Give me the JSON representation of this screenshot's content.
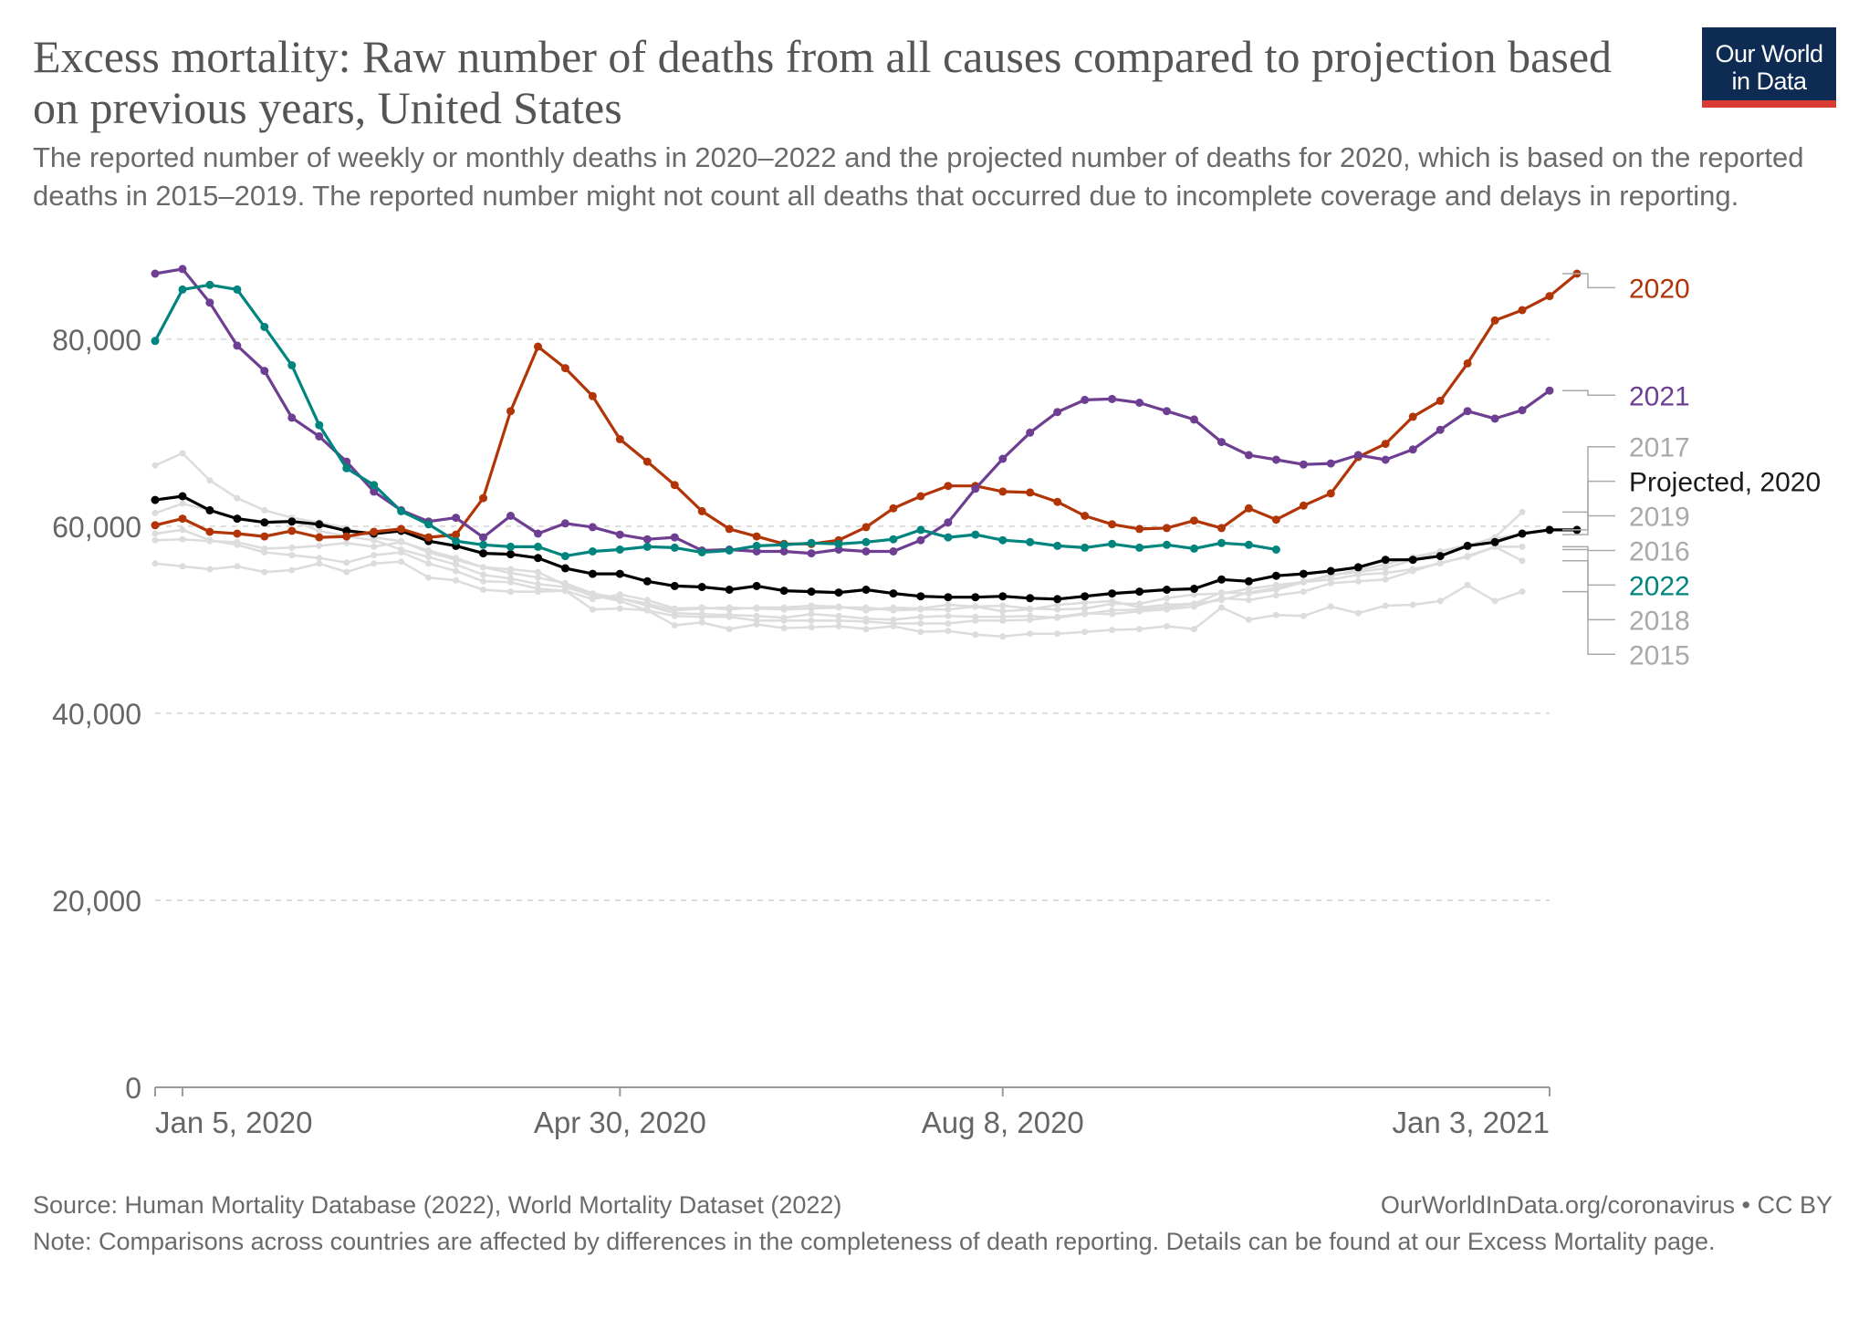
{
  "header": {
    "title": "Excess mortality: Raw number of deaths from all causes compared to projection based on previous years, United States",
    "subtitle": "The reported number of weekly or monthly deaths in 2020–2022 and the projected number of deaths for 2020, which is based on the reported deaths in 2015–2019. The reported number might not count all deaths that occurred due to incomplete coverage and delays in reporting.",
    "logo_line1": "Our World",
    "logo_line2": "in Data"
  },
  "footer": {
    "source": "Source: Human Mortality Database (2022), World Mortality Dataset (2022)",
    "url": "OurWorldInData.org/coronavirus • CC BY",
    "note": "Note: Comparisons across countries are affected by differences in the completeness of death reporting. Details can be found at our Excess Mortality page."
  },
  "chart_data": {
    "type": "line",
    "title": "Excess mortality: Raw number of deaths from all causes compared to projection based on previous years, United States",
    "xlabel": "",
    "ylabel": "",
    "ylim": [
      0,
      87000
    ],
    "yticks": [
      0,
      20000,
      40000,
      60000,
      80000
    ],
    "ytick_labels": [
      "0",
      "20,000",
      "40,000",
      "60,000",
      "80,000"
    ],
    "xlim": [
      0,
      51
    ],
    "xticks": [
      1,
      17,
      31,
      51
    ],
    "xtick_labels": [
      "Jan 5, 2020",
      "Apr 30, 2020",
      "Aug 8, 2020",
      "Jan 3, 2021"
    ],
    "grid": true,
    "legend": "right-labels",
    "series": [
      {
        "name": "2015",
        "role": "background",
        "color": "#dcdcdc",
        "values": [
          56000,
          55700,
          55400,
          55700,
          55100,
          55300,
          56000,
          55100,
          56000,
          56200,
          54500,
          54200,
          53200,
          53000,
          53000,
          53100,
          51100,
          51200,
          51000,
          49400,
          49700,
          49000,
          49500,
          49100,
          49200,
          49300,
          49000,
          49300,
          48700,
          48800,
          48400,
          48200,
          48500,
          48500,
          48700,
          48900,
          49000,
          49300,
          49000,
          51300,
          50000,
          50500,
          50400,
          51400,
          50700,
          51500,
          51600,
          52000,
          53700,
          52000,
          53000
        ]
      },
      {
        "name": "2016",
        "role": "background",
        "color": "#dcdcdc",
        "values": [
          58500,
          58600,
          58400,
          58300,
          57600,
          57700,
          57900,
          58200,
          57800,
          58300,
          57400,
          56600,
          55600,
          55400,
          55100,
          53700,
          52500,
          52300,
          51700,
          51000,
          51200,
          51300,
          51200,
          51100,
          51200,
          51300,
          51300,
          51000,
          51100,
          51100,
          51400,
          50900,
          51100,
          51600,
          51800,
          52000,
          51300,
          51600,
          51700,
          52900,
          52800,
          53200,
          54000,
          54300,
          54800,
          55000,
          55400,
          56000,
          56800,
          57800,
          57800
        ]
      },
      {
        "name": "2017",
        "role": "background",
        "color": "#dcdcdc",
        "values": [
          66500,
          67800,
          64900,
          63000,
          61700,
          60900,
          60400,
          59800,
          58800,
          58400,
          57200,
          56400,
          55600,
          55000,
          54500,
          53900,
          52800,
          52300,
          51500,
          50700,
          50600,
          50500,
          50400,
          50200,
          50600,
          50400,
          50100,
          50000,
          50300,
          50400,
          50300,
          50300,
          50400,
          50200,
          50600,
          51000,
          51100,
          51300,
          51700,
          52100,
          52900,
          53400,
          54100,
          54700,
          55300,
          55900,
          56700,
          57300,
          58000,
          58700,
          59100
        ]
      },
      {
        "name": "2018",
        "role": "background",
        "color": "#dcdcdc",
        "values": [
          61400,
          62400,
          61700,
          60800,
          60500,
          60600,
          59500,
          58900,
          58500,
          57500,
          56700,
          55900,
          54800,
          54400,
          53800,
          53500,
          52600,
          52000,
          51000,
          50400,
          50300,
          50300,
          49900,
          49900,
          49900,
          49900,
          49800,
          49600,
          49600,
          49600,
          49900,
          49900,
          50000,
          50300,
          50700,
          50600,
          50900,
          51100,
          51400,
          52300,
          52100,
          52600,
          53000,
          53900,
          54100,
          54300,
          55200,
          56100,
          56700,
          57800,
          56300
        ]
      },
      {
        "name": "2019",
        "role": "background",
        "color": "#dcdcdc",
        "values": [
          59200,
          59600,
          58500,
          58000,
          57200,
          56900,
          56600,
          56100,
          56900,
          57200,
          56000,
          55200,
          54100,
          54000,
          53300,
          53100,
          52200,
          52700,
          52100,
          51200,
          51300,
          51100,
          51300,
          51300,
          51500,
          51400,
          51000,
          51300,
          51200,
          51600,
          51400,
          51500,
          51200,
          51100,
          51200,
          51700,
          51700,
          52300,
          52700,
          52800,
          53300,
          53700,
          54000,
          54800,
          55100,
          55500,
          56400,
          57300,
          57900,
          58800,
          61500
        ]
      },
      {
        "name": "Projected, 2020",
        "role": "projected",
        "color": "#000000",
        "values": [
          62800,
          63200,
          61700,
          60800,
          60400,
          60500,
          60200,
          59500,
          59200,
          59500,
          58400,
          57900,
          57100,
          57000,
          56600,
          55500,
          54900,
          54900,
          54100,
          53600,
          53500,
          53200,
          53600,
          53100,
          53000,
          52900,
          53200,
          52800,
          52500,
          52400,
          52400,
          52500,
          52300,
          52200,
          52500,
          52800,
          53000,
          53200,
          53300,
          54300,
          54100,
          54700,
          54900,
          55200,
          55600,
          56400,
          56400,
          56800,
          57900,
          58300,
          59200,
          59600,
          59600
        ]
      },
      {
        "name": "2020",
        "role": "main",
        "color": "#b13507",
        "values": [
          60100,
          60800,
          59400,
          59200,
          58900,
          59500,
          58800,
          58900,
          59400,
          59700,
          58800,
          59100,
          63000,
          72300,
          79200,
          76900,
          73900,
          69300,
          66900,
          64400,
          61600,
          59700,
          58900,
          58100,
          58100,
          58500,
          59900,
          61900,
          63200,
          64300,
          64300,
          63700,
          63600,
          62600,
          61100,
          60200,
          59700,
          59800,
          60600,
          59800,
          61900,
          60700,
          62200,
          63500,
          67400,
          68800,
          71700,
          73400,
          77400,
          82000,
          83100,
          84600,
          87000
        ]
      },
      {
        "name": "2021",
        "role": "main",
        "color": "#6d3e91",
        "values": [
          87000,
          87500,
          83900,
          79300,
          76600,
          71600,
          69600,
          66900,
          63700,
          61700,
          60500,
          60900,
          58800,
          61100,
          59200,
          60300,
          59900,
          59100,
          58600,
          58800,
          57400,
          57500,
          57300,
          57300,
          57100,
          57500,
          57300,
          57300,
          58500,
          60400,
          64000,
          67200,
          70000,
          72200,
          73500,
          73600,
          73200,
          72300,
          71400,
          69000,
          67600,
          67100,
          66600,
          66700,
          67600,
          67100,
          68200,
          70300,
          72300,
          71500,
          72400,
          74500
        ]
      },
      {
        "name": "2022",
        "role": "main",
        "color": "#00847e",
        "values": [
          79800,
          85300,
          85800,
          85300,
          81300,
          77200,
          70800,
          66200,
          64400,
          61600,
          60200,
          58400,
          58000,
          57800,
          57800,
          56800,
          57300,
          57500,
          57800,
          57700,
          57200,
          57400,
          57900,
          58000,
          58200,
          58100,
          58300,
          58600,
          59600,
          58800,
          59100,
          58500,
          58300,
          57900,
          57700,
          58100,
          57700,
          58000,
          57600,
          58200,
          58000,
          57500
        ]
      }
    ],
    "end_labels": [
      {
        "name": "2020",
        "label_y": 85500,
        "color": "#b13507"
      },
      {
        "name": "2021",
        "label_y": 74000,
        "color": "#6d3e91"
      },
      {
        "name": "2017",
        "label_y": 68500,
        "color": "#a9a9a9"
      },
      {
        "name": "Projected, 2020",
        "label_y": 64800,
        "color": "#1a1a1a"
      },
      {
        "name": "2019",
        "label_y": 61100,
        "color": "#a9a9a9"
      },
      {
        "name": "2016",
        "label_y": 57400,
        "color": "#a9a9a9"
      },
      {
        "name": "2022",
        "label_y": 53700,
        "color": "#00847e"
      },
      {
        "name": "2018",
        "label_y": 50000,
        "color": "#a9a9a9"
      },
      {
        "name": "2015",
        "label_y": 46300,
        "color": "#a9a9a9"
      }
    ]
  }
}
